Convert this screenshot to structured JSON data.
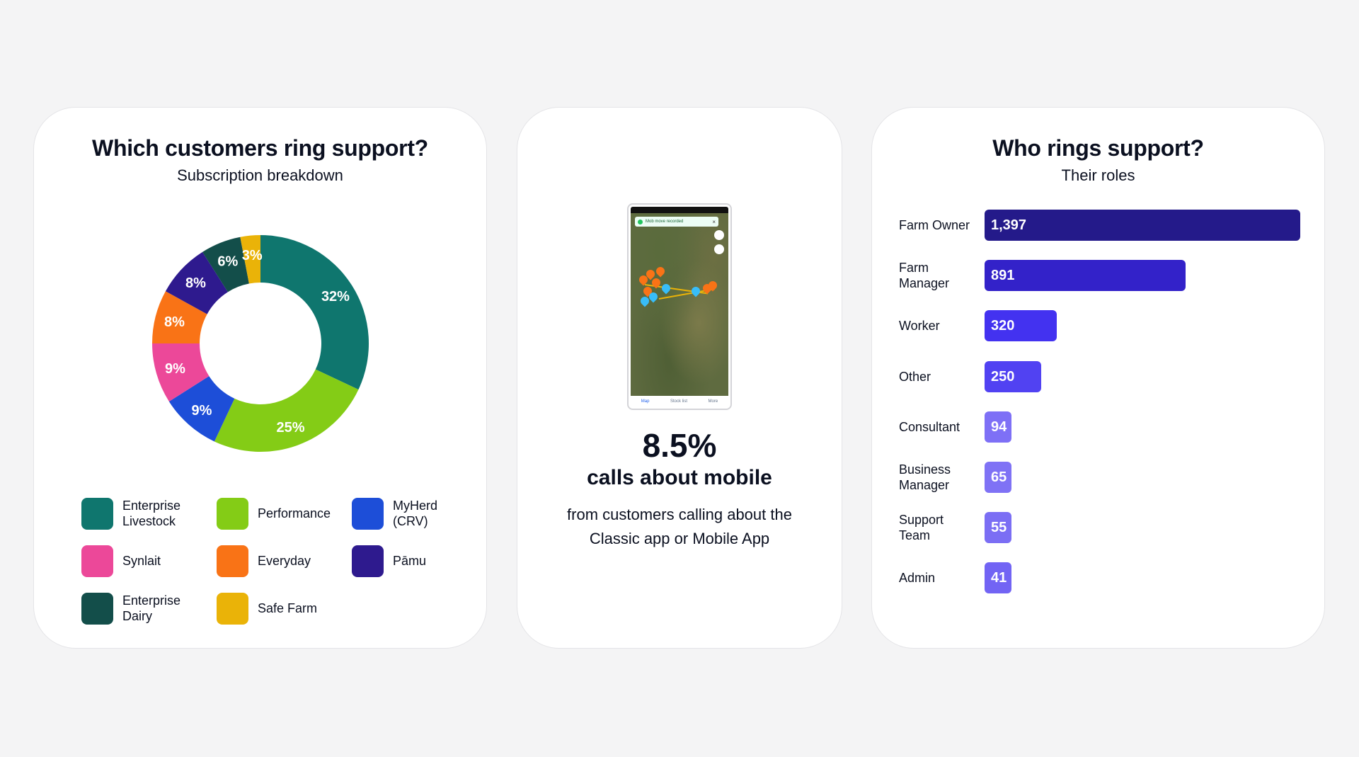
{
  "cards": {
    "left": {
      "title": "Which customers ring support?",
      "subtitle": "Subscription breakdown"
    },
    "middle": {
      "stat_value": "8.5%",
      "stat_label": "calls about mobile",
      "stat_description": "from customers calling about the Classic app or Mobile App",
      "phone": {
        "toast_text": "Mob move recorded",
        "nav_items": [
          "Map",
          "Stock list",
          "More"
        ]
      }
    },
    "right": {
      "title": "Who rings support?",
      "subtitle": "Their roles"
    }
  },
  "chart_data": [
    {
      "type": "pie",
      "title": "Which customers ring support?",
      "subtitle": "Subscription breakdown",
      "donut": true,
      "legend_placement": "bottom",
      "slices": [
        {
          "name": "Enterprise Livestock",
          "value": 32,
          "label": "32%",
          "color": "#0f766e"
        },
        {
          "name": "Performance",
          "value": 25,
          "label": "25%",
          "color": "#84cc16"
        },
        {
          "name": "MyHerd (CRV)",
          "value": 9,
          "label": "9%",
          "color": "#1d4ed8"
        },
        {
          "name": "Synlait",
          "value": 9,
          "label": "9%",
          "color": "#ec4899"
        },
        {
          "name": "Everyday",
          "value": 8,
          "label": "8%",
          "color": "#f97316"
        },
        {
          "name": "Pāmu",
          "value": 8,
          "label": "8%",
          "color": "#2e1a8e"
        },
        {
          "name": "Enterprise Dairy",
          "value": 6,
          "label": "6%",
          "color": "#134e4a"
        },
        {
          "name": "Safe Farm",
          "value": 3,
          "label": "3%",
          "color": "#eab308"
        }
      ],
      "legend_order": [
        "Enterprise Livestock",
        "Performance",
        "MyHerd (CRV)",
        "Synlait",
        "Everyday",
        "Pāmu",
        "Enterprise Dairy",
        "Safe Farm"
      ]
    },
    {
      "type": "bar",
      "orientation": "horizontal",
      "title": "Who rings support?",
      "subtitle": "Their roles",
      "categories": [
        "Farm Owner",
        "Farm Manager",
        "Worker",
        "Other",
        "Consultant",
        "Business Manager",
        "Support Team",
        "Admin"
      ],
      "category_display": [
        "Farm Owner",
        "Farm\nManager",
        "Worker",
        "Other",
        "Consultant",
        "Business\nManager",
        "Support\nTeam",
        "Admin"
      ],
      "values": [
        1397,
        891,
        320,
        250,
        94,
        65,
        55,
        41
      ],
      "value_labels": [
        "1,397",
        "891",
        "320",
        "250",
        "94",
        "65",
        "55",
        "41"
      ],
      "colors": [
        "#241a8a",
        "#3322c9",
        "#4332f0",
        "#5142f2",
        "#7e70f6",
        "#7f72f5",
        "#7b6ef4",
        "#7264f4"
      ],
      "grid": false
    }
  ]
}
